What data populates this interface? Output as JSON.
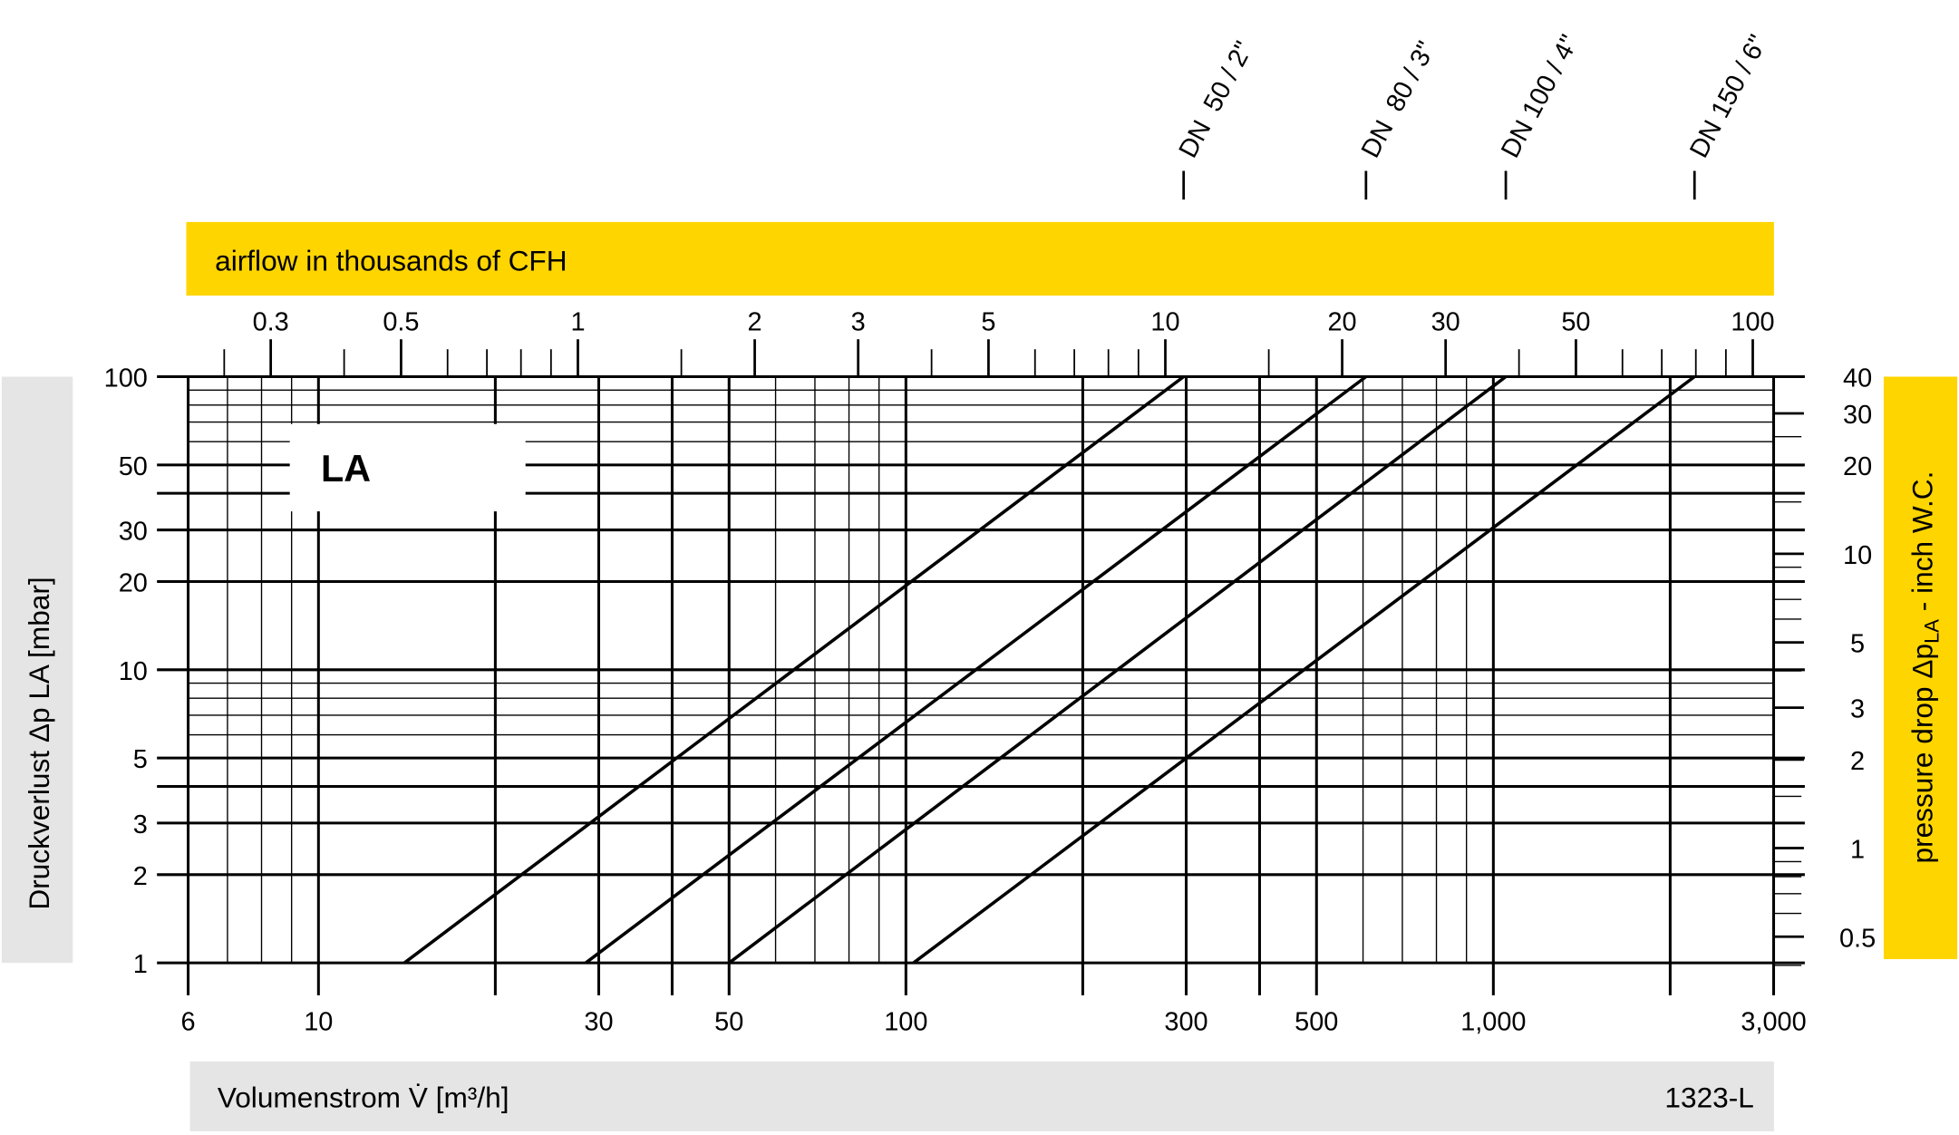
{
  "chart_data": {
    "type": "line",
    "title": "LA",
    "code": "1323-L",
    "xscale": "log",
    "yscale": "log",
    "xlabel": "Volumenstrom V̇ [m³/h]",
    "ylabel": "Druckverlust Δp LA [mbar]",
    "xlim": [
      6,
      3000
    ],
    "ylim": [
      1,
      100
    ],
    "grid": true,
    "x_ticks": [
      6,
      10,
      30,
      50,
      100,
      300,
      500,
      1000,
      3000
    ],
    "x_tick_labels": [
      "6",
      "10",
      "30",
      "50",
      "100",
      "300",
      "500",
      "1,000",
      "3,000"
    ],
    "y_ticks": [
      1,
      2,
      3,
      5,
      10,
      20,
      30,
      50,
      100
    ],
    "y_tick_labels": [
      "1",
      "2",
      "3",
      "5",
      "10",
      "20",
      "30",
      "50",
      "100"
    ],
    "top_axis": {
      "label": "airflow in thousands of CFH",
      "ticks": [
        0.3,
        0.5,
        1,
        2,
        3,
        5,
        10,
        20,
        30,
        50,
        100
      ],
      "tick_labels": [
        "0.3",
        "0.5",
        "1",
        "2",
        "3",
        "5",
        "10",
        "20",
        "30",
        "50",
        "100"
      ],
      "color": "#FFD500"
    },
    "right_axis": {
      "label_main": "pressure  drop Δp",
      "label_sub": "LA",
      "label_end": " - inch W.C.",
      "ticks": [
        40,
        30,
        20,
        10,
        5,
        3,
        2,
        1,
        0.5
      ],
      "tick_labels": [
        "40",
        "30",
        "20",
        "10",
        "5",
        "3",
        "2",
        "1",
        "0.5"
      ],
      "color": "#FFD500"
    },
    "panel_color": "#E5E5E5",
    "series": [
      {
        "name": "DN  50 / 2\"",
        "x": [
          14,
          297
        ],
        "y": [
          1,
          100
        ]
      },
      {
        "name": "DN  80 / 3\"",
        "x": [
          28.5,
          607
        ],
        "y": [
          1,
          100
        ]
      },
      {
        "name": "DN 100 / 4\"",
        "x": [
          50,
          1050
        ],
        "y": [
          1,
          100
        ]
      },
      {
        "name": "DN 150 / 6\"",
        "x": [
          103,
          2200
        ],
        "y": [
          1,
          100
        ]
      }
    ]
  }
}
